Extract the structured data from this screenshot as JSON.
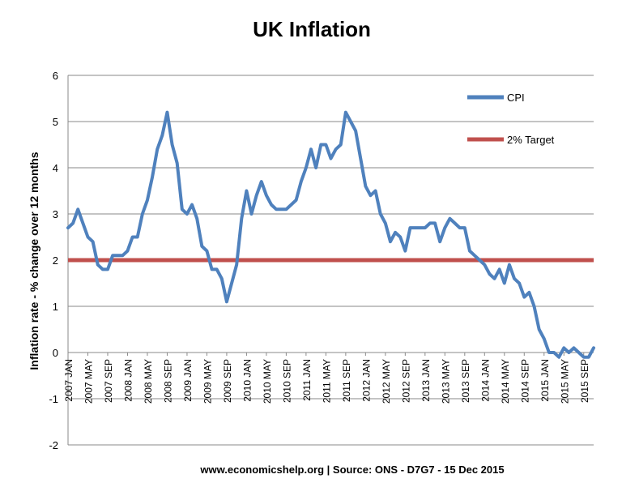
{
  "chart_data": {
    "type": "line",
    "title": "UK Inflation",
    "ylabel": "Inflation rate  - % change over 12 months",
    "xlabel": "",
    "ylim": [
      -2,
      6
    ],
    "yticks": [
      "-2",
      "-1",
      "0",
      "1",
      "2",
      "3",
      "4",
      "5",
      "6"
    ],
    "x_tick_labels": [
      "2007 JAN",
      "2007 MAY",
      "2007 SEP",
      "2008 JAN",
      "2008 MAY",
      "2008 SEP",
      "2009 JAN",
      "2009 MAY",
      "2009 SEP",
      "2010 JAN",
      "2010 MAY",
      "2010 SEP",
      "2011 JAN",
      "2011 MAY",
      "2011 SEP",
      "2012 JAN",
      "2012 MAY",
      "2012 SEP",
      "2013 JAN",
      "2013 MAY",
      "2013 SEP",
      "2014 JAN",
      "2014 MAY",
      "2014 SEP",
      "2015 JAN",
      "2015 MAY",
      "2015 SEP"
    ],
    "grid": "horizontal",
    "legend_position": "top-right",
    "series": [
      {
        "name": "CPI",
        "color": "#4f81bd",
        "start": "2007-01",
        "frequency": "monthly",
        "values": [
          2.7,
          2.8,
          3.1,
          2.8,
          2.5,
          2.4,
          1.9,
          1.8,
          1.8,
          2.1,
          2.1,
          2.1,
          2.2,
          2.5,
          2.5,
          3.0,
          3.3,
          3.8,
          4.4,
          4.7,
          5.2,
          4.5,
          4.1,
          3.1,
          3.0,
          3.2,
          2.9,
          2.3,
          2.2,
          1.8,
          1.8,
          1.6,
          1.1,
          1.5,
          1.9,
          2.9,
          3.5,
          3.0,
          3.4,
          3.7,
          3.4,
          3.2,
          3.1,
          3.1,
          3.1,
          3.2,
          3.3,
          3.7,
          4.0,
          4.4,
          4.0,
          4.5,
          4.5,
          4.2,
          4.4,
          4.5,
          5.2,
          5.0,
          4.8,
          4.2,
          3.6,
          3.4,
          3.5,
          3.0,
          2.8,
          2.4,
          2.6,
          2.5,
          2.2,
          2.7,
          2.7,
          2.7,
          2.7,
          2.8,
          2.8,
          2.4,
          2.7,
          2.9,
          2.8,
          2.7,
          2.7,
          2.2,
          2.1,
          2.0,
          1.9,
          1.7,
          1.6,
          1.8,
          1.5,
          1.9,
          1.6,
          1.5,
          1.2,
          1.3,
          1.0,
          0.5,
          0.3,
          0.0,
          0.0,
          -0.1,
          0.1,
          0.0,
          0.1,
          0.0,
          -0.1,
          -0.1,
          0.1
        ]
      },
      {
        "name": "2% Target",
        "color": "#c0504d",
        "start": "2007-01",
        "frequency": "monthly",
        "constant_value": 2
      }
    ]
  },
  "footer": {
    "source": "www.economicshelp.org | Source: ONS - D7G7 - 15 Dec 2015"
  }
}
